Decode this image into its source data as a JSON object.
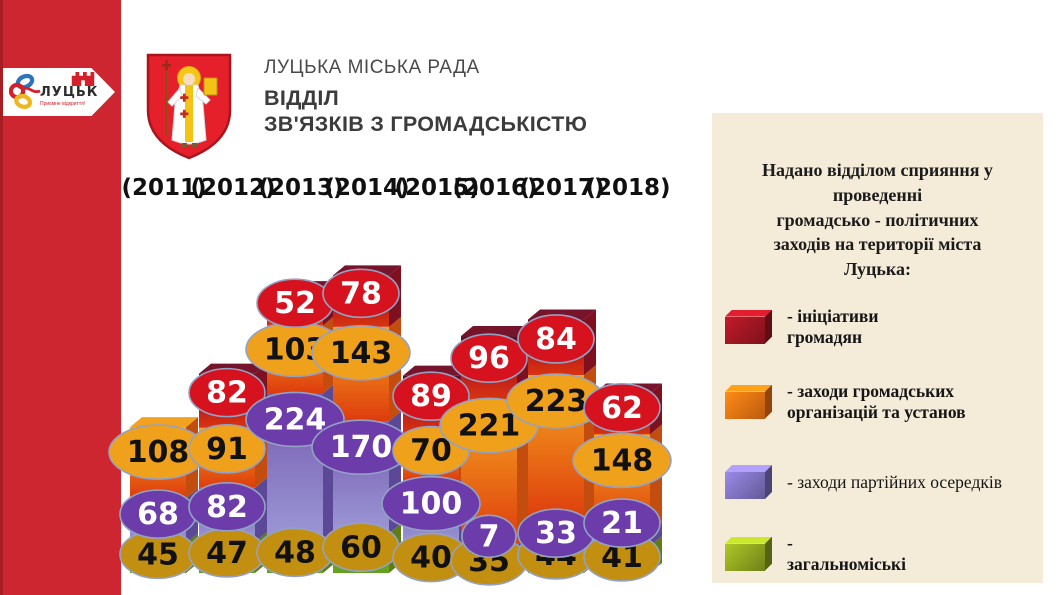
{
  "brand": {
    "logo_text": "ЛУЦЬК",
    "logo_tagline": "Приємне відкриття!"
  },
  "header": {
    "org_name": "ЛУЦЬКА МІСЬКА РАДА",
    "dept_line1": "ВІДДІЛ",
    "dept_line2": "ЗВ'ЯЗКІВ З ГРОМАДСЬКІСТЮ"
  },
  "panel": {
    "title": "Надано відділом сприяння у\nпроведенні\nгромадсько - політичних\nзаходів на території міста\nЛуцька:",
    "bg_color": "#f4ebd9",
    "legend": [
      {
        "label": "- ініціативи\nгромадян",
        "color": "#9c1522",
        "bold": true
      },
      {
        "label": "- заходи громадських\nорганізацій та установ",
        "color": "#ea7012",
        "bold": true
      },
      {
        "label": "- заходи партійних осередків",
        "color": "#7b6fba",
        "bold": false
      },
      {
        "label": "-\nзагальноміські",
        "color": "#8ba01f",
        "bold": true
      }
    ]
  },
  "chart_data": {
    "type": "bar",
    "stacked": true,
    "title": "Надано відділом сприяння у проведенні громадсько-політичних заходів на території міста Луцька",
    "categories": [
      "2011",
      "2012",
      "2013",
      "2014",
      "2015",
      "2016",
      "2017",
      "2018"
    ],
    "category_labels": [
      "(2011)",
      "(2012)",
      "(2013)",
      "(2014)",
      "(2015)",
      "(2016)",
      "(2017)",
      "(2018)"
    ],
    "series": [
      {
        "name": "загальноміські",
        "color_key": "green",
        "values": [
          45,
          47,
          48,
          60,
          40,
          35,
          44,
          41
        ]
      },
      {
        "name": "заходи партійних осередків",
        "color_key": "purple",
        "values": [
          68,
          82,
          224,
          170,
          100,
          7,
          33,
          21
        ]
      },
      {
        "name": "заходи громадських організацій та установ",
        "color_key": "orange",
        "values": [
          108,
          91,
          103,
          143,
          70,
          221,
          223,
          148
        ]
      },
      {
        "name": "ініціативи громадян",
        "color_key": "red",
        "values": [
          null,
          82,
          52,
          78,
          89,
          96,
          84,
          62
        ]
      }
    ],
    "value_labels_shown": true,
    "axis_shown": false,
    "legend_position": "right"
  },
  "colors": {
    "sidebar_red": "#ce2630",
    "label_stroke": "#93a2c4",
    "segments": {
      "green": {
        "grad": [
          "#a7a41d",
          "#61a120"
        ],
        "side": "#5e7d15",
        "top": "#b0ab2a",
        "label_bg": "#c28f10",
        "label_text": "#111111"
      },
      "purple": {
        "grad": [
          "#7459ae",
          "#9c98d6"
        ],
        "side": "#5b4896",
        "top": "#9d93cf",
        "label_bg": "#6b3caa",
        "label_text": "#ffffff"
      },
      "orange": {
        "grad": [
          "#f6a81f",
          "#de3b0d"
        ],
        "side": "#c24d0e",
        "top": "#f2a21e",
        "label_bg": "#f0a11c",
        "label_text": "#111111"
      },
      "red": {
        "grad": [
          "#570d1d",
          "#b5161f",
          "#d8340f"
        ],
        "side": "#7e1020",
        "top": "#76142b",
        "label_bg": "#d6121f",
        "label_text": "#ffffff"
      }
    }
  }
}
